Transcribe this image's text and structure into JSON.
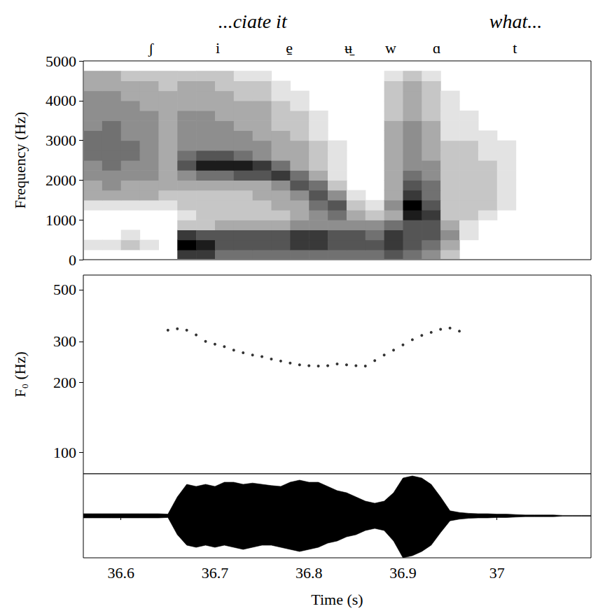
{
  "chart_data": [
    {
      "type": "spectrogram",
      "words": [
        {
          "label": "...ciate it",
          "x": 36.74
        },
        {
          "label": "what...",
          "x": 37.02
        }
      ],
      "segments": [
        {
          "label": "ʃ",
          "x": 36.632
        },
        {
          "label": "i",
          "x": 36.703
        },
        {
          "label": "e̠",
          "x": 36.779
        },
        {
          "label": "ʉ̠",
          "x": 36.842
        },
        {
          "label": "w",
          "x": 36.887
        },
        {
          "label": "ɑ",
          "x": 36.936
        },
        {
          "label": "t",
          "x": 37.019
        }
      ],
      "y_label": "Frequency (Hz)",
      "xlim": [
        36.56,
        37.1
      ],
      "ylim": [
        0,
        5000
      ],
      "yticks": [
        0,
        1000,
        2000,
        3000,
        4000,
        5000
      ],
      "tick_labels": "y",
      "color": "#000000",
      "zlim": [
        0,
        9
      ],
      "times": [
        36.56,
        36.58,
        36.6,
        36.62,
        36.64,
        36.66,
        36.68,
        36.7,
        36.72,
        36.74,
        36.76,
        36.78,
        36.8,
        36.82,
        36.84,
        36.86,
        36.88,
        36.9,
        36.92,
        36.94,
        36.96,
        36.98,
        37.0,
        37.02,
        37.04,
        37.06,
        37.08,
        37.1
      ],
      "freqs": [
        0,
        250,
        500,
        750,
        1000,
        1250,
        1500,
        1750,
        2000,
        2250,
        2500,
        2750,
        3000,
        3250,
        3500,
        3750,
        4000,
        4250,
        4500,
        4750,
        5000
      ],
      "intensity": [
        [
          0,
          0,
          0,
          0,
          0,
          7,
          7,
          5,
          5,
          5,
          5,
          5,
          5,
          5,
          5,
          5,
          6,
          5,
          4,
          2,
          0,
          0,
          0,
          0,
          0,
          0,
          0
        ],
        [
          1,
          1,
          2,
          1,
          0,
          9,
          8,
          6,
          6,
          6,
          6,
          7,
          7,
          6,
          6,
          6,
          7,
          6,
          5,
          3,
          0,
          0,
          0,
          0,
          0,
          0,
          0
        ],
        [
          0,
          0,
          1,
          0,
          0,
          7,
          6,
          6,
          6,
          6,
          6,
          7,
          7,
          6,
          6,
          5,
          7,
          6,
          6,
          4,
          1,
          0,
          0,
          0,
          0,
          0,
          0
        ],
        [
          0,
          0,
          0,
          0,
          0,
          2,
          2,
          3,
          3,
          3,
          3,
          4,
          4,
          4,
          4,
          4,
          5,
          6,
          6,
          3,
          1,
          0,
          0,
          0,
          0,
          0,
          0
        ],
        [
          0,
          0,
          0,
          0,
          0,
          1,
          2,
          2,
          2,
          2,
          2,
          3,
          4,
          5,
          3,
          2,
          3,
          8,
          7,
          2,
          2,
          1,
          0,
          0,
          0,
          0,
          0
        ],
        [
          1,
          1,
          1,
          1,
          1,
          2,
          2,
          2,
          2,
          2,
          3,
          3,
          5,
          6,
          2,
          1,
          4,
          9,
          6,
          2,
          2,
          2,
          1,
          0,
          0,
          0,
          0
        ],
        [
          3,
          3,
          3,
          3,
          2,
          2,
          2,
          2,
          2,
          3,
          3,
          4,
          6,
          4,
          1,
          0,
          3,
          7,
          5,
          2,
          2,
          2,
          1,
          0,
          0,
          0,
          0
        ],
        [
          3,
          4,
          3,
          3,
          3,
          3,
          3,
          3,
          3,
          3,
          4,
          6,
          5,
          2,
          0,
          0,
          3,
          6,
          5,
          2,
          2,
          2,
          1,
          0,
          0,
          0,
          0
        ],
        [
          4,
          4,
          4,
          4,
          3,
          4,
          5,
          5,
          6,
          6,
          7,
          5,
          3,
          1,
          0,
          0,
          3,
          5,
          4,
          2,
          2,
          2,
          1,
          0,
          0,
          0,
          0
        ],
        [
          4,
          5,
          4,
          4,
          3,
          6,
          8,
          8,
          8,
          7,
          5,
          3,
          2,
          1,
          0,
          0,
          3,
          4,
          4,
          2,
          2,
          2,
          1,
          0,
          0,
          0,
          0
        ],
        [
          5,
          5,
          5,
          4,
          3,
          5,
          6,
          6,
          5,
          4,
          3,
          3,
          2,
          1,
          0,
          0,
          3,
          4,
          3,
          2,
          2,
          1,
          1,
          0,
          0,
          0,
          0
        ],
        [
          5,
          5,
          5,
          4,
          3,
          4,
          4,
          4,
          4,
          4,
          3,
          3,
          2,
          1,
          0,
          0,
          3,
          4,
          3,
          2,
          2,
          1,
          1,
          0,
          0,
          0,
          0
        ],
        [
          5,
          5,
          4,
          4,
          3,
          4,
          4,
          4,
          4,
          3,
          3,
          2,
          1,
          0,
          0,
          0,
          3,
          4,
          3,
          1,
          1,
          1,
          0,
          0,
          0,
          0,
          0
        ],
        [
          4,
          5,
          4,
          4,
          3,
          4,
          4,
          4,
          3,
          3,
          2,
          2,
          1,
          0,
          0,
          0,
          3,
          4,
          3,
          1,
          1,
          0,
          0,
          0,
          0,
          0,
          0
        ],
        [
          4,
          4,
          4,
          4,
          3,
          4,
          4,
          3,
          3,
          3,
          2,
          2,
          1,
          0,
          0,
          0,
          2,
          3,
          2,
          1,
          1,
          0,
          0,
          0,
          0,
          0,
          0
        ],
        [
          4,
          4,
          4,
          3,
          3,
          3,
          3,
          3,
          3,
          3,
          2,
          1,
          0,
          0,
          0,
          0,
          2,
          3,
          2,
          1,
          0,
          0,
          0,
          0,
          0,
          0,
          0
        ],
        [
          4,
          4,
          3,
          3,
          3,
          3,
          3,
          3,
          2,
          2,
          1,
          1,
          0,
          0,
          0,
          0,
          2,
          3,
          2,
          1,
          0,
          0,
          0,
          0,
          0,
          0,
          0
        ],
        [
          3,
          3,
          3,
          3,
          2,
          3,
          3,
          2,
          2,
          2,
          1,
          0,
          0,
          0,
          0,
          0,
          2,
          3,
          2,
          0,
          0,
          0,
          0,
          0,
          0,
          0,
          0
        ],
        [
          3,
          3,
          2,
          2,
          2,
          2,
          2,
          2,
          1,
          1,
          0,
          0,
          0,
          0,
          0,
          0,
          1,
          2,
          1,
          0,
          0,
          0,
          0,
          0,
          0,
          0,
          0
        ],
        [
          0,
          0,
          0,
          0,
          0,
          0,
          0,
          0,
          0,
          0,
          0,
          0,
          0,
          0,
          0,
          0,
          0,
          0,
          0,
          0,
          0,
          0,
          0,
          0,
          0,
          0,
          0
        ]
      ]
    },
    {
      "type": "scatter",
      "y_label": "F₀ (Hz)",
      "log": "y",
      "xlim": [
        36.56,
        37.1
      ],
      "ylim": [
        81,
        578
      ],
      "yticks": [
        100,
        200,
        300,
        500
      ],
      "tick_labels": "y",
      "color": "#000000",
      "marker": "circle",
      "x": [
        36.65,
        36.66,
        36.67,
        36.68,
        36.69,
        36.7,
        36.71,
        36.72,
        36.73,
        36.74,
        36.75,
        36.76,
        36.77,
        36.78,
        36.79,
        36.8,
        36.81,
        36.82,
        36.83,
        36.84,
        36.85,
        36.86,
        36.87,
        36.88,
        36.89,
        36.9,
        36.91,
        36.92,
        36.93,
        36.94,
        36.95,
        36.96
      ],
      "values": [
        335,
        340,
        335,
        320,
        300,
        292,
        285,
        275,
        268,
        262,
        258,
        252,
        247,
        242,
        238,
        236,
        235,
        236,
        240,
        238,
        236,
        235,
        248,
        262,
        275,
        290,
        305,
        318,
        328,
        338,
        342,
        332
      ]
    },
    {
      "type": "area",
      "x_label": "Time (s)",
      "xlim": [
        36.56,
        37.1
      ],
      "ylim": [
        -1,
        1
      ],
      "xticks": [
        36.6,
        36.7,
        36.8,
        36.9,
        37
      ],
      "tick_labels": "x",
      "color": "#000000",
      "x": [
        36.56,
        36.57,
        36.58,
        36.59,
        36.6,
        36.61,
        36.62,
        36.63,
        36.64,
        36.65,
        36.66,
        36.67,
        36.68,
        36.69,
        36.7,
        36.71,
        36.72,
        36.73,
        36.74,
        36.75,
        36.76,
        36.77,
        36.78,
        36.79,
        36.8,
        36.81,
        36.82,
        36.83,
        36.84,
        36.85,
        36.86,
        36.87,
        36.88,
        36.89,
        36.9,
        36.91,
        36.92,
        36.93,
        36.94,
        36.95,
        36.96,
        36.97,
        36.98,
        36.99,
        37.0,
        37.01,
        37.02,
        37.03,
        37.04,
        37.05,
        37.06,
        37.07,
        37.08,
        37.09,
        37.1
      ],
      "upper": [
        0.05,
        0.05,
        0.05,
        0.05,
        0.05,
        0.05,
        0.05,
        0.05,
        0.05,
        0.04,
        0.45,
        0.75,
        0.7,
        0.75,
        0.7,
        0.8,
        0.8,
        0.75,
        0.78,
        0.75,
        0.72,
        0.7,
        0.8,
        0.85,
        0.8,
        0.8,
        0.7,
        0.6,
        0.55,
        0.45,
        0.35,
        0.3,
        0.35,
        0.55,
        0.9,
        0.95,
        0.9,
        0.75,
        0.45,
        0.12,
        0.08,
        0.06,
        0.05,
        0.05,
        0.04,
        0.04,
        0.03,
        0.02,
        0.02,
        0.02,
        0.02,
        0.01,
        0.01,
        0.01,
        0.01
      ],
      "lower": [
        -0.05,
        -0.05,
        -0.05,
        -0.05,
        -0.05,
        -0.05,
        -0.05,
        -0.05,
        -0.05,
        -0.04,
        -0.45,
        -0.7,
        -0.75,
        -0.7,
        -0.75,
        -0.7,
        -0.75,
        -0.8,
        -0.75,
        -0.7,
        -0.7,
        -0.75,
        -0.8,
        -0.85,
        -0.8,
        -0.75,
        -0.65,
        -0.6,
        -0.5,
        -0.45,
        -0.35,
        -0.3,
        -0.35,
        -0.6,
        -1.0,
        -0.95,
        -0.85,
        -0.7,
        -0.4,
        -0.12,
        -0.08,
        -0.06,
        -0.05,
        -0.05,
        -0.04,
        -0.04,
        -0.03,
        -0.02,
        -0.02,
        -0.02,
        -0.02,
        -0.01,
        -0.01,
        -0.01,
        -0.01
      ]
    }
  ]
}
